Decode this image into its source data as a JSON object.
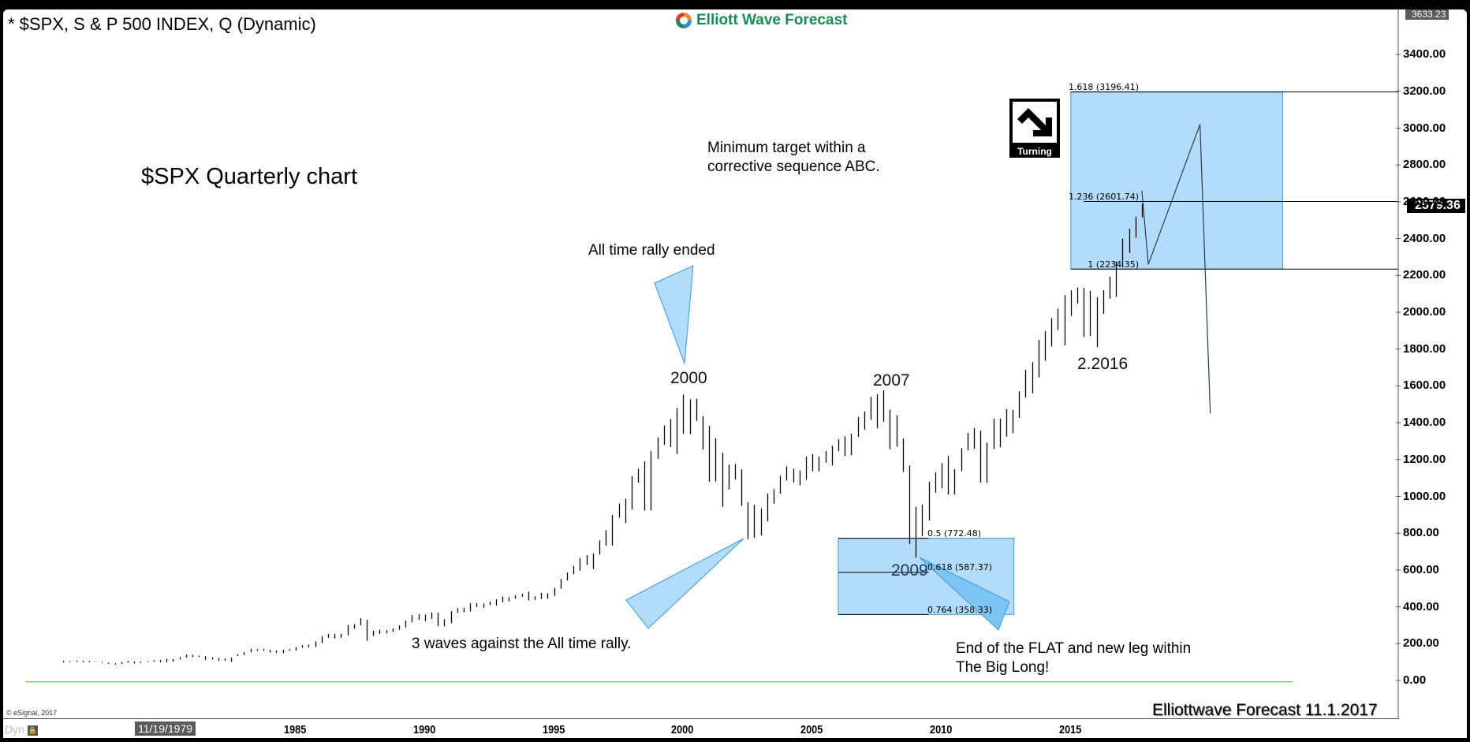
{
  "header": {
    "symbol_title": "* $SPX, S & P 500 INDEX, Q (Dynamic)",
    "logo_text": "Elliott Wave Forecast"
  },
  "colors": {
    "zone_fill": "#b3dcfa",
    "zone_stroke": "#3a9ad9",
    "zero_line": "#5fd35f",
    "logo_green": "#1b8a56",
    "bar_color": "#000000"
  },
  "annotations": {
    "chart_title": "$SPX Quarterly chart",
    "min_target_line1": "Minimum target within a",
    "min_target_line2": "corrective sequence ABC.",
    "all_time_rally": "All time rally ended",
    "label_2000": "2000",
    "label_2007": "2007",
    "label_2009": "2009",
    "label_2016": "2.2016",
    "three_waves": "3 waves against the All time rally.",
    "flat_line1": "End of the FLAT and new leg within",
    "flat_line2": "The Big Long!",
    "turning_badge": "Turning",
    "footer_brand": "Elliottwave Forecast 11.1.2017",
    "copyright": "© eSignal, 2017",
    "dyn_label": "Dyn"
  },
  "fib_levels": {
    "upper": [
      {
        "label": "1.618 (3196.41)",
        "value": 3196.41
      },
      {
        "label": "1.236 (2601.74)",
        "value": 2601.74
      },
      {
        "label": "1 (2234.35)",
        "value": 2234.35
      }
    ],
    "lower": [
      {
        "label": "0.5 (772.48)",
        "value": 772.48
      },
      {
        "label": "0.618 (587.37)",
        "value": 587.37
      },
      {
        "label": "0.764 (358.33)",
        "value": 358.33
      }
    ]
  },
  "price_axis": {
    "high_label": "3633.23",
    "last_price": "2579.36",
    "ticks": [
      "3400.00",
      "3200.00",
      "3000.00",
      "2800.00",
      "2600.00",
      "2400.00",
      "2200.00",
      "2000.00",
      "1800.00",
      "1600.00",
      "1400.00",
      "1200.00",
      "1000.00",
      "800.00",
      "600.00",
      "400.00",
      "200.00",
      "0.00"
    ]
  },
  "time_axis": {
    "cursor_date": "11/19/1979",
    "ticks": [
      "1985",
      "1990",
      "1995",
      "2000",
      "2005",
      "2010",
      "2015"
    ]
  },
  "chart_data": {
    "type": "bar",
    "title": "$SPX Quarterly chart",
    "subtitle": "* $SPX, S & P 500 INDEX, Q (Dynamic)",
    "xlabel": "",
    "ylabel": "",
    "ylim": [
      0,
      3633.23
    ],
    "xlim": [
      1976,
      2022
    ],
    "grid": false,
    "last_price": 2579.36,
    "series_format": "[year_fraction, high, low]",
    "bars": [
      [
        1976.0,
        107,
        98
      ],
      [
        1976.25,
        105,
        99
      ],
      [
        1976.5,
        108,
        101
      ],
      [
        1976.75,
        107,
        99
      ],
      [
        1977.0,
        107,
        100
      ],
      [
        1977.25,
        101,
        98
      ],
      [
        1977.5,
        101,
        96
      ],
      [
        1977.75,
        97,
        90
      ],
      [
        1978.0,
        93,
        86
      ],
      [
        1978.25,
        100,
        90
      ],
      [
        1978.5,
        107,
        97
      ],
      [
        1978.75,
        103,
        92
      ],
      [
        1979.0,
        103,
        96
      ],
      [
        1979.25,
        103,
        98
      ],
      [
        1979.5,
        109,
        102
      ],
      [
        1979.75,
        112,
        98
      ],
      [
        1980.0,
        118,
        98
      ],
      [
        1980.25,
        117,
        102
      ],
      [
        1980.5,
        127,
        114
      ],
      [
        1980.75,
        141,
        125
      ],
      [
        1981.0,
        138,
        128
      ],
      [
        1981.25,
        135,
        128
      ],
      [
        1981.5,
        132,
        112
      ],
      [
        1981.75,
        126,
        115
      ],
      [
        1982.0,
        122,
        108
      ],
      [
        1982.25,
        119,
        108
      ],
      [
        1982.5,
        124,
        102
      ],
      [
        1982.75,
        143,
        132
      ],
      [
        1983.0,
        154,
        138
      ],
      [
        1983.25,
        172,
        153
      ],
      [
        1983.5,
        170,
        160
      ],
      [
        1983.75,
        172,
        162
      ],
      [
        1984.0,
        168,
        152
      ],
      [
        1984.25,
        163,
        150
      ],
      [
        1984.5,
        167,
        148
      ],
      [
        1984.75,
        170,
        161
      ],
      [
        1985.0,
        181,
        163
      ],
      [
        1985.25,
        192,
        178
      ],
      [
        1985.5,
        195,
        180
      ],
      [
        1985.75,
        212,
        182
      ],
      [
        1986.0,
        240,
        203
      ],
      [
        1986.25,
        253,
        232
      ],
      [
        1986.5,
        254,
        228
      ],
      [
        1986.75,
        254,
        232
      ],
      [
        1987.0,
        301,
        246
      ],
      [
        1987.25,
        306,
        281
      ],
      [
        1987.5,
        338,
        300
      ],
      [
        1987.75,
        330,
        216
      ],
      [
        1988.0,
        271,
        242
      ],
      [
        1988.25,
        275,
        253
      ],
      [
        1988.5,
        273,
        256
      ],
      [
        1988.75,
        283,
        264
      ],
      [
        1989.0,
        299,
        275
      ],
      [
        1989.25,
        325,
        289
      ],
      [
        1989.5,
        355,
        316
      ],
      [
        1989.75,
        360,
        330
      ],
      [
        1990.0,
        358,
        322
      ],
      [
        1990.25,
        370,
        335
      ],
      [
        1990.5,
        369,
        295
      ],
      [
        1990.75,
        333,
        294
      ],
      [
        1991.0,
        376,
        311
      ],
      [
        1991.25,
        393,
        368
      ],
      [
        1991.5,
        395,
        371
      ],
      [
        1991.75,
        420,
        375
      ],
      [
        1992.0,
        420,
        399
      ],
      [
        1992.25,
        418,
        395
      ],
      [
        1992.5,
        428,
        409
      ],
      [
        1992.75,
        441,
        407
      ],
      [
        1993.0,
        456,
        425
      ],
      [
        1993.25,
        453,
        430
      ],
      [
        1993.5,
        463,
        444
      ],
      [
        1993.75,
        471,
        455
      ],
      [
        1994.0,
        482,
        435
      ],
      [
        1994.25,
        458,
        438
      ],
      [
        1994.5,
        477,
        443
      ],
      [
        1994.75,
        474,
        444
      ],
      [
        1995.0,
        503,
        459
      ],
      [
        1995.25,
        551,
        499
      ],
      [
        1995.5,
        586,
        543
      ],
      [
        1995.75,
        622,
        577
      ],
      [
        1996.0,
        664,
        597
      ],
      [
        1996.25,
        681,
        628
      ],
      [
        1996.5,
        690,
        605
      ],
      [
        1996.75,
        761,
        684
      ],
      [
        1997.0,
        817,
        733
      ],
      [
        1997.25,
        899,
        733
      ],
      [
        1997.5,
        961,
        884
      ],
      [
        1997.75,
        987,
        855
      ],
      [
        1998.0,
        1110,
        928
      ],
      [
        1998.25,
        1150,
        1075
      ],
      [
        1998.5,
        1190,
        923
      ],
      [
        1998.75,
        1245,
        923
      ],
      [
        1999.0,
        1320,
        1205
      ],
      [
        1999.25,
        1385,
        1280
      ],
      [
        1999.5,
        1420,
        1268
      ],
      [
        1999.75,
        1480,
        1230
      ],
      [
        2000.0,
        1553,
        1340
      ],
      [
        2000.25,
        1527,
        1338
      ],
      [
        2000.5,
        1530,
        1410
      ],
      [
        2000.75,
        1436,
        1254
      ],
      [
        2001.0,
        1383,
        1080
      ],
      [
        2001.25,
        1316,
        1081
      ],
      [
        2001.5,
        1236,
        944
      ],
      [
        2001.75,
        1172,
        1038
      ],
      [
        2002.0,
        1176,
        1091
      ],
      [
        2002.25,
        1147,
        948
      ],
      [
        2002.5,
        968,
        768
      ],
      [
        2002.75,
        954,
        776
      ],
      [
        2003.0,
        935,
        788
      ],
      [
        2003.25,
        1015,
        865
      ],
      [
        2003.5,
        1040,
        960
      ],
      [
        2003.75,
        1112,
        1015
      ],
      [
        2004.0,
        1163,
        1087
      ],
      [
        2004.25,
        1150,
        1076
      ],
      [
        2004.5,
        1140,
        1060
      ],
      [
        2004.75,
        1217,
        1090
      ],
      [
        2005.0,
        1230,
        1137
      ],
      [
        2005.25,
        1216,
        1136
      ],
      [
        2005.5,
        1246,
        1183
      ],
      [
        2005.75,
        1275,
        1168
      ],
      [
        2006.0,
        1310,
        1245
      ],
      [
        2006.25,
        1326,
        1219
      ],
      [
        2006.5,
        1340,
        1224
      ],
      [
        2006.75,
        1431,
        1323
      ],
      [
        2007.0,
        1461,
        1363
      ],
      [
        2007.25,
        1540,
        1416
      ],
      [
        2007.5,
        1555,
        1370
      ],
      [
        2007.75,
        1576,
        1406
      ],
      [
        2008.0,
        1471,
        1256
      ],
      [
        2008.25,
        1440,
        1270
      ],
      [
        2008.5,
        1314,
        1133
      ],
      [
        2008.75,
        1167,
        741
      ],
      [
        2009.0,
        943,
        666
      ],
      [
        2009.25,
        956,
        783
      ],
      [
        2009.5,
        1080,
        869
      ],
      [
        2009.75,
        1130,
        1020
      ],
      [
        2010.0,
        1180,
        1044
      ],
      [
        2010.25,
        1219,
        1010
      ],
      [
        2010.5,
        1148,
        1010
      ],
      [
        2010.75,
        1262,
        1137
      ],
      [
        2011.0,
        1344,
        1250
      ],
      [
        2011.25,
        1370,
        1259
      ],
      [
        2011.5,
        1356,
        1075
      ],
      [
        2011.75,
        1292,
        1074
      ],
      [
        2012.0,
        1422,
        1258
      ],
      [
        2012.25,
        1422,
        1267
      ],
      [
        2012.5,
        1474,
        1325
      ],
      [
        2012.75,
        1470,
        1343
      ],
      [
        2013.0,
        1570,
        1426
      ],
      [
        2013.25,
        1687,
        1536
      ],
      [
        2013.5,
        1729,
        1560
      ],
      [
        2013.75,
        1849,
        1646
      ],
      [
        2014.0,
        1897,
        1737
      ],
      [
        2014.25,
        1968,
        1814
      ],
      [
        2014.5,
        2019,
        1904
      ],
      [
        2014.75,
        2093,
        1820
      ],
      [
        2015.0,
        2119,
        1980
      ],
      [
        2015.25,
        2134,
        2048
      ],
      [
        2015.5,
        2132,
        1867
      ],
      [
        2015.75,
        2116,
        1871
      ],
      [
        2016.0,
        2082,
        1810
      ],
      [
        2016.25,
        2120,
        1991
      ],
      [
        2016.5,
        2193,
        2074
      ],
      [
        2016.75,
        2277,
        2083
      ],
      [
        2017.0,
        2400,
        2245
      ],
      [
        2017.25,
        2454,
        2322
      ],
      [
        2017.5,
        2519,
        2405
      ],
      [
        2017.75,
        2588,
        2515
      ]
    ],
    "projection_path": [
      [
        2017.75,
        2660
      ],
      [
        2018.0,
        2260
      ],
      [
        2020.0,
        3020
      ],
      [
        2020.4,
        1450
      ]
    ],
    "zones": [
      {
        "name": "upper_target",
        "x0": 2015.0,
        "x1": 2023.2,
        "y0": 2234.35,
        "y1": 3196.41
      },
      {
        "name": "lower_flat",
        "x0": 2006.0,
        "x1": 2012.8,
        "y0": 358.33,
        "y1": 772.48
      }
    ],
    "annotations": [
      {
        "text": "2000",
        "x": 2000.0,
        "y": 1620
      },
      {
        "text": "2007",
        "x": 2007.75,
        "y": 1605
      },
      {
        "text": "2009",
        "x": 2009.0,
        "y": 580
      },
      {
        "text": "2.2016",
        "x": 2016.0,
        "y": 1690
      },
      {
        "text": "All time rally ended",
        "x": 1999.5,
        "y": 2350
      },
      {
        "text": "3 waves against the All time rally.",
        "x": 1997,
        "y": 180
      },
      {
        "text": "End of the FLAT and new leg within The Big Long!",
        "x": 2015,
        "y": 170
      },
      {
        "text": "Minimum target within a corrective sequence ABC.",
        "x": 2006,
        "y": 2900
      }
    ],
    "zero_line": 0
  }
}
